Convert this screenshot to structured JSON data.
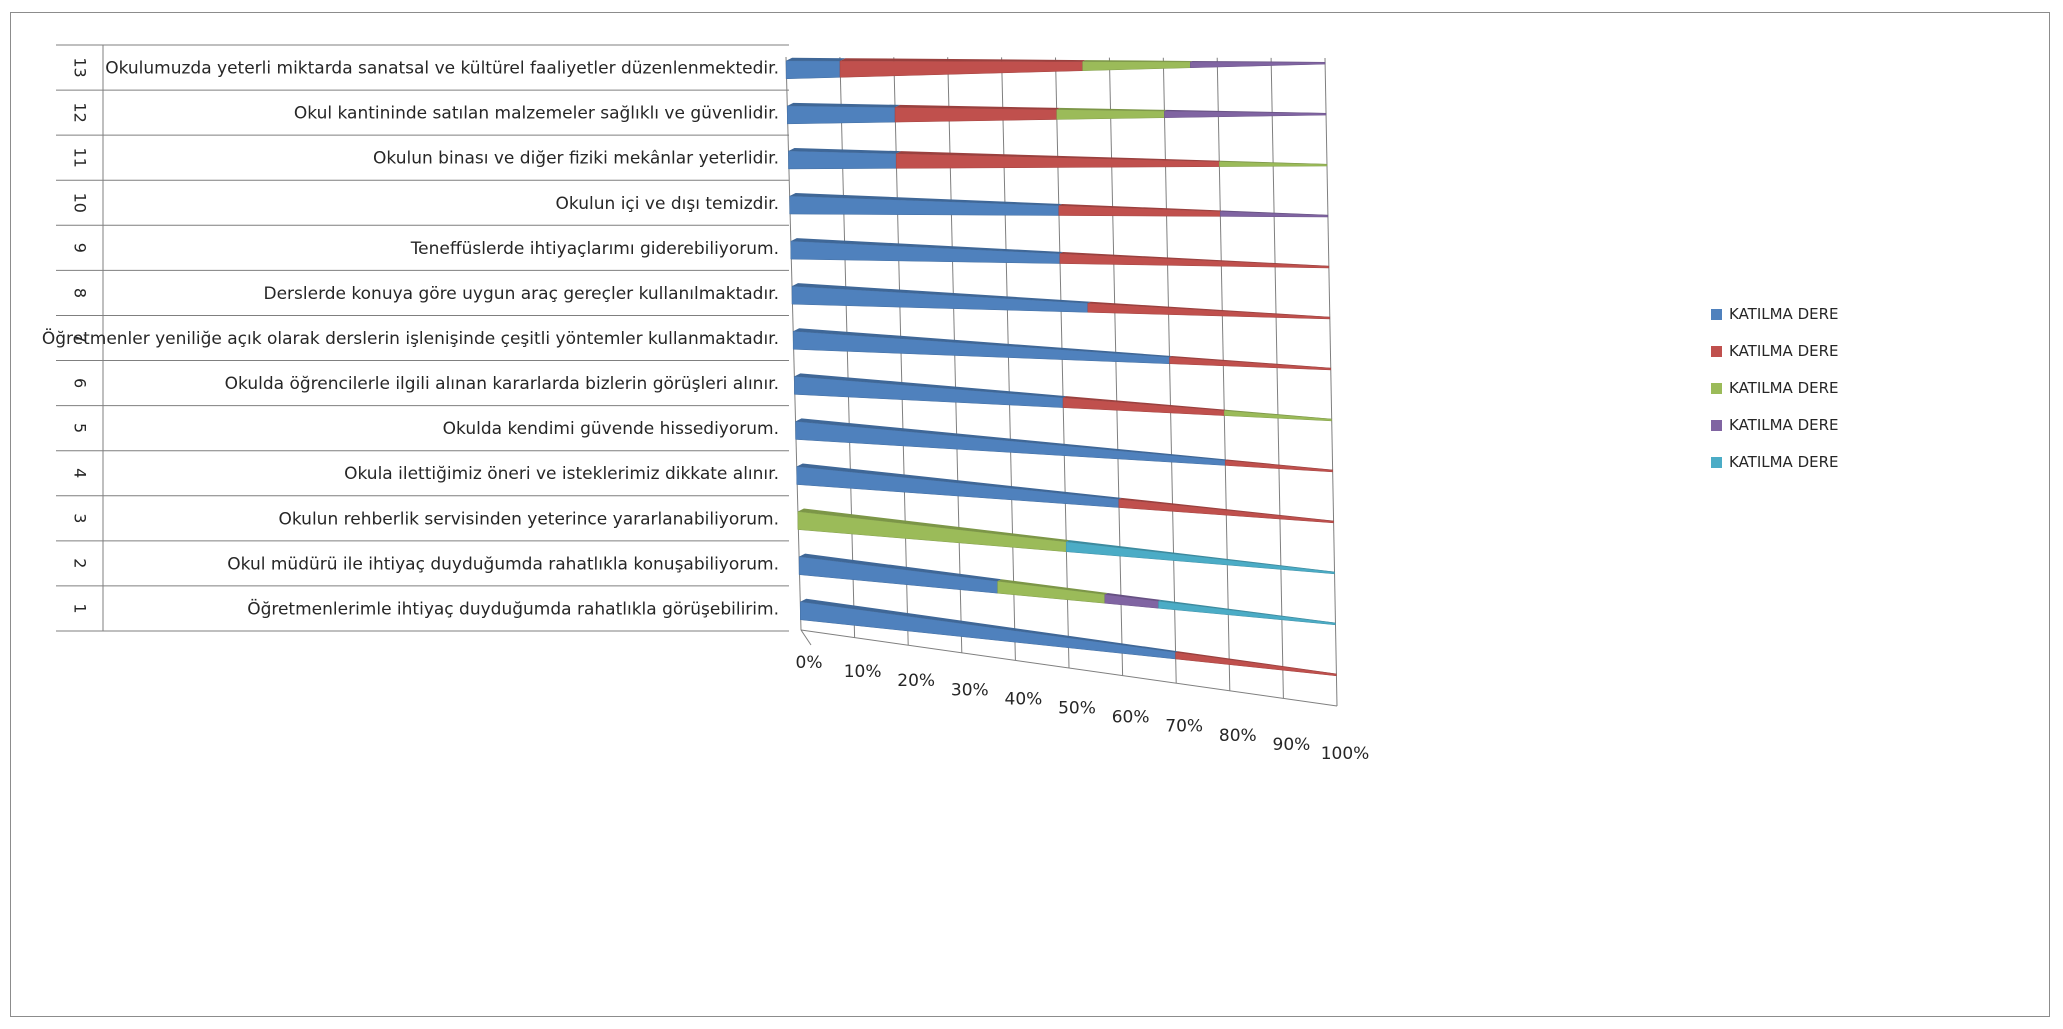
{
  "chart_data": {
    "type": "bar",
    "orientation": "horizontal",
    "stacked": "100%",
    "perspective_3d": true,
    "categories": [
      {
        "num": "1",
        "label": "Öğretmenlerimle ihtiyaç duyduğumda rahatlıkla görüşebilirim."
      },
      {
        "num": "2",
        "label": "Okul müdürü ile ihtiyaç duyduğumda rahatlıkla konuşabiliyorum."
      },
      {
        "num": "3",
        "label": "Okulun rehberlik servisinden yeterince yararlanabiliyorum."
      },
      {
        "num": "4",
        "label": "Okula ilettiğimiz öneri ve isteklerimiz dikkate alınır."
      },
      {
        "num": "5",
        "label": "Okulda kendimi güvende hissediyorum."
      },
      {
        "num": "6",
        "label": "Okulda öğrencilerle ilgili alınan kararlarda bizlerin görüşleri alınır."
      },
      {
        "num": "7",
        "label": "Öğretmenler yeniliğe açık olarak derslerin işlenişinde çeşitli yöntemler kullanmaktadır."
      },
      {
        "num": "8",
        "label": "Derslerde konuya göre uygun araç gereçler kullanılmaktadır."
      },
      {
        "num": "9",
        "label": "Teneffüslerde ihtiyaçlarımı giderebiliyorum."
      },
      {
        "num": "10",
        "label": "Okulun içi ve dışı temizdir."
      },
      {
        "num": "11",
        "label": "Okulun binası ve diğer fiziki mekânlar yeterlidir."
      },
      {
        "num": "12",
        "label": "Okul kantininde satılan malzemeler sağlıklı ve güvenlidir."
      },
      {
        "num": "13",
        "label": "Okulumuzda yeterli miktarda sanatsal ve kültürel faaliyetler düzenlenmektedir."
      }
    ],
    "series": [
      {
        "name": "KATILMA DERE",
        "color": "#4F81BD",
        "values": [
          70,
          37,
          0,
          60,
          80,
          50,
          70,
          55,
          50,
          50,
          20,
          20,
          10
        ]
      },
      {
        "name": "KATILMA DERE",
        "color": "#C0504D",
        "values": [
          30,
          0,
          0,
          40,
          20,
          30,
          30,
          45,
          50,
          30,
          60,
          30,
          45
        ]
      },
      {
        "name": "KATILMA DERE",
        "color": "#9BBB59",
        "values": [
          0,
          20,
          50,
          0,
          0,
          20,
          0,
          0,
          0,
          0,
          20,
          20,
          20
        ]
      },
      {
        "name": "KATILMA DERE",
        "color": "#8064A2",
        "values": [
          0,
          10,
          0,
          0,
          0,
          0,
          0,
          0,
          0,
          20,
          0,
          30,
          25
        ]
      },
      {
        "name": "KATILMA DERE",
        "color": "#4BACC6",
        "values": [
          0,
          33,
          50,
          0,
          0,
          0,
          0,
          0,
          0,
          0,
          0,
          0,
          0
        ]
      }
    ],
    "x_ticks": [
      "0%",
      "10%",
      "20%",
      "30%",
      "40%",
      "50%",
      "60%",
      "70%",
      "80%",
      "90%",
      "100%"
    ],
    "xlim": [
      0,
      100
    ],
    "grid": true,
    "legend_position": "right"
  }
}
